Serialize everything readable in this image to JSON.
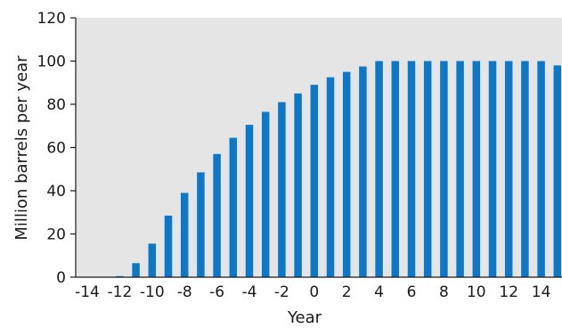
{
  "chart_data": {
    "type": "bar",
    "title": "",
    "xlabel": "Year",
    "ylabel": "Million barrels per year",
    "ylim": [
      0,
      120
    ],
    "y_ticks": [
      0,
      20,
      40,
      60,
      80,
      100,
      120
    ],
    "x_tick_labels": [
      -14,
      -12,
      -10,
      -8,
      -6,
      -4,
      -2,
      0,
      2,
      4,
      6,
      8,
      10,
      12,
      14
    ],
    "grid": false,
    "bar_color": "#0e78c8",
    "plot_background": "#e5e5e5",
    "series": [
      {
        "x": [
          -14,
          -13,
          -12,
          -11,
          -10,
          -9,
          -8,
          -7,
          -6,
          -5,
          -4,
          -3,
          -2,
          -1,
          0,
          1,
          2,
          3,
          4,
          5,
          6,
          7,
          8,
          9,
          10,
          11,
          12,
          13,
          14,
          15
        ],
        "values": [
          0,
          0,
          0.5,
          6.5,
          15.5,
          28.5,
          39,
          48.5,
          57,
          64.5,
          70.5,
          76.5,
          81,
          85,
          89,
          92.5,
          95,
          97.5,
          100,
          100,
          100,
          100,
          100,
          100,
          100,
          100,
          100,
          100,
          100,
          98
        ]
      }
    ]
  }
}
